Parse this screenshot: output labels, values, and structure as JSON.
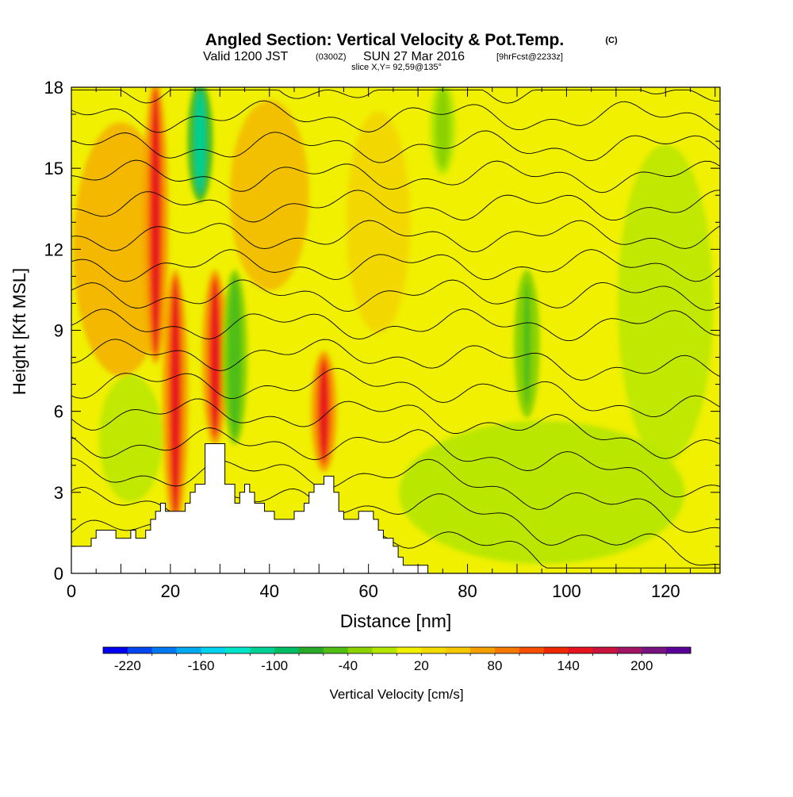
{
  "header": {
    "title": "Angled Section: Vertical Velocity & Pot.Temp.",
    "title_tag": "(C)",
    "valid_prefix": "Valid 1200 JST",
    "valid_utc": "(0300Z)",
    "valid_date": "SUN 27 Mar 2016",
    "forecast_tag": "[9hrFcst@2233z]",
    "slice": "slice X,Y= 92,59@135°"
  },
  "chart_data": {
    "type": "heatmap",
    "title": "Angled Section: Vertical Velocity & Pot.Temp.",
    "xlabel": "Distance [nm]",
    "ylabel": "Height [Kft MSL]",
    "xlim": [
      0,
      131
    ],
    "ylim": [
      0,
      18
    ],
    "x_ticks": [
      "0",
      "20",
      "40",
      "60",
      "80",
      "100",
      "120"
    ],
    "x_tick_values": [
      0,
      20,
      40,
      60,
      80,
      100,
      120
    ],
    "y_ticks": [
      "0",
      "3",
      "6",
      "9",
      "12",
      "15",
      "18"
    ],
    "y_tick_values": [
      0,
      3,
      6,
      9,
      12,
      15,
      18
    ],
    "grid": false,
    "background_value": 10,
    "updraft_bands": [
      {
        "x": 17,
        "value": 150,
        "from_height": 8,
        "to_height": 18
      },
      {
        "x": 21,
        "value": 150,
        "from_height": 2,
        "to_height": 11
      },
      {
        "x": 29,
        "value": 150,
        "from_height": 5,
        "to_height": 11
      },
      {
        "x": 51,
        "value": 140,
        "from_height": 4,
        "to_height": 8
      }
    ],
    "downdraft_bands": [
      {
        "x": 26,
        "value": -110,
        "from_height": 14,
        "to_height": 18
      },
      {
        "x": 33,
        "value": -60,
        "from_height": 5,
        "to_height": 11
      },
      {
        "x": 92,
        "value": -50,
        "from_height": 6,
        "to_height": 11
      },
      {
        "x": 75,
        "value": -40,
        "from_height": 15,
        "to_height": 18
      }
    ],
    "terrain_height_kft": [
      [
        0,
        1.0
      ],
      [
        4,
        1.0
      ],
      [
        4,
        1.3
      ],
      [
        5,
        1.3
      ],
      [
        5,
        1.6
      ],
      [
        9,
        1.6
      ],
      [
        9,
        1.3
      ],
      [
        12,
        1.3
      ],
      [
        12,
        1.6
      ],
      [
        13,
        1.6
      ],
      [
        13,
        1.3
      ],
      [
        15,
        1.3
      ],
      [
        15,
        1.6
      ],
      [
        16,
        1.6
      ],
      [
        16,
        2.0
      ],
      [
        17,
        2.0
      ],
      [
        17,
        2.3
      ],
      [
        18,
        2.3
      ],
      [
        18,
        2.6
      ],
      [
        19,
        2.6
      ],
      [
        19,
        2.3
      ],
      [
        23,
        2.3
      ],
      [
        23,
        2.6
      ],
      [
        24,
        2.6
      ],
      [
        24,
        3.0
      ],
      [
        25,
        3.0
      ],
      [
        25,
        3.3
      ],
      [
        27,
        3.3
      ],
      [
        27,
        4.8
      ],
      [
        31,
        4.8
      ],
      [
        31,
        3.3
      ],
      [
        33,
        3.3
      ],
      [
        33,
        2.6
      ],
      [
        34,
        2.6
      ],
      [
        34,
        3.0
      ],
      [
        35,
        3.0
      ],
      [
        35,
        3.3
      ],
      [
        36,
        3.3
      ],
      [
        36,
        3.0
      ],
      [
        37,
        3.0
      ],
      [
        37,
        2.6
      ],
      [
        39,
        2.6
      ],
      [
        39,
        2.3
      ],
      [
        41,
        2.3
      ],
      [
        41,
        2.0
      ],
      [
        45,
        2.0
      ],
      [
        45,
        2.3
      ],
      [
        47,
        2.3
      ],
      [
        47,
        2.6
      ],
      [
        48,
        2.6
      ],
      [
        48,
        3.0
      ],
      [
        49,
        3.0
      ],
      [
        49,
        3.3
      ],
      [
        51,
        3.3
      ],
      [
        51,
        3.6
      ],
      [
        53,
        3.6
      ],
      [
        53,
        3.0
      ],
      [
        54,
        3.0
      ],
      [
        54,
        2.3
      ],
      [
        55,
        2.3
      ],
      [
        55,
        2.0
      ],
      [
        58,
        2.0
      ],
      [
        58,
        2.3
      ],
      [
        61,
        2.3
      ],
      [
        61,
        2.0
      ],
      [
        62,
        2.0
      ],
      [
        62,
        1.6
      ],
      [
        63,
        1.6
      ],
      [
        63,
        1.3
      ],
      [
        65,
        1.3
      ],
      [
        65,
        1.0
      ],
      [
        66,
        1.0
      ],
      [
        66,
        0.6
      ],
      [
        67,
        0.6
      ],
      [
        67,
        0.3
      ],
      [
        72,
        0.3
      ],
      [
        72,
        0.0
      ]
    ],
    "isentropes_c": [
      10,
      12,
      14,
      16,
      18,
      20,
      22,
      24,
      26,
      28,
      30,
      32,
      34,
      36,
      38,
      40
    ],
    "colorbar": {
      "label": "Vertical Velocity [cm/s]",
      "labels": [
        "-220",
        "-160",
        "-100",
        "-40",
        "20",
        "80",
        "140",
        "200"
      ],
      "label_values": [
        -220,
        -160,
        -100,
        -40,
        20,
        80,
        140,
        200
      ],
      "range": [
        -240,
        240
      ],
      "step": 20,
      "colors": [
        "#0000f0",
        "#0046f0",
        "#0078f0",
        "#00aaf0",
        "#00d2f0",
        "#00e6c8",
        "#00d296",
        "#00be64",
        "#28aa28",
        "#50be14",
        "#8cd200",
        "#b4e600",
        "#f0f000",
        "#f5dc00",
        "#f5c800",
        "#f5a000",
        "#f57800",
        "#f55000",
        "#f02800",
        "#e6141e",
        "#c8143c",
        "#a01464",
        "#781482",
        "#5a0096"
      ]
    }
  }
}
